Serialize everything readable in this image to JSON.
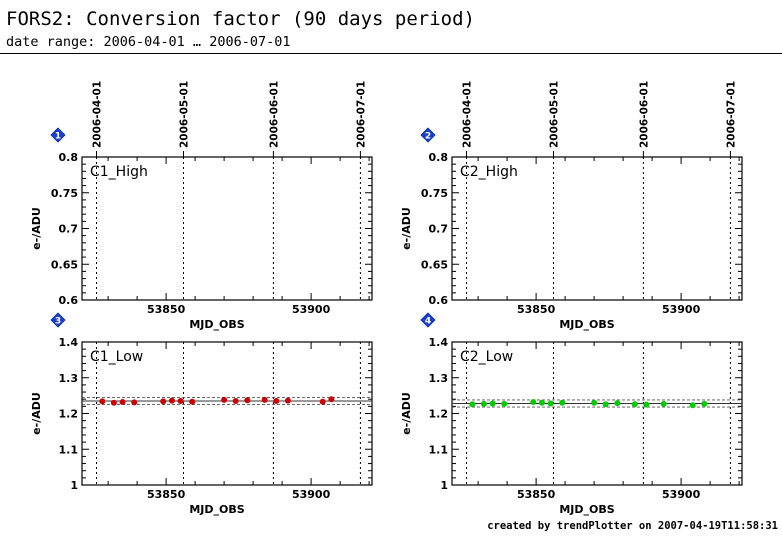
{
  "header": {
    "title": "FORS2: Conversion factor (90 days period)",
    "subtitle": "date range: 2006-04-01 … 2006-07-01"
  },
  "footer": {
    "credit": "created by trendPlotter on 2007-04-19T11:58:31"
  },
  "colors": {
    "badge": "#1a3fd6",
    "c1_points": "#cc0000",
    "c2_points": "#00cc00"
  },
  "chart_data": [
    {
      "type": "scatter",
      "panel_number": "1",
      "panel_label": "C1_High",
      "xlabel": "MJD_OBS",
      "ylabel": "e-/ADU",
      "xlim": [
        53821,
        53921
      ],
      "ylim": [
        0.6,
        0.8
      ],
      "x_ticks": [
        "53850",
        "53900"
      ],
      "y_ticks": [
        "0.6",
        "0.65",
        "0.7",
        "0.75",
        "0.8"
      ],
      "date_markers": [
        {
          "mjd": 53826,
          "label": "2006-04-01"
        },
        {
          "mjd": 53856,
          "label": "2006-05-01"
        },
        {
          "mjd": 53887,
          "label": "2006-06-01"
        },
        {
          "mjd": 53917,
          "label": "2006-07-01"
        }
      ],
      "series": []
    },
    {
      "type": "scatter",
      "panel_number": "2",
      "panel_label": "C2_High",
      "xlabel": "MJD_OBS",
      "ylabel": "e-/ADU",
      "xlim": [
        53821,
        53921
      ],
      "ylim": [
        0.6,
        0.8
      ],
      "x_ticks": [
        "53850",
        "53900"
      ],
      "y_ticks": [
        "0.6",
        "0.65",
        "0.7",
        "0.75",
        "0.8"
      ],
      "date_markers": [
        {
          "mjd": 53826,
          "label": "2006-04-01"
        },
        {
          "mjd": 53856,
          "label": "2006-05-01"
        },
        {
          "mjd": 53887,
          "label": "2006-06-01"
        },
        {
          "mjd": 53917,
          "label": "2006-07-01"
        }
      ],
      "series": []
    },
    {
      "type": "scatter",
      "panel_number": "3",
      "panel_label": "C1_Low",
      "xlabel": "MJD_OBS",
      "ylabel": "e-/ADU",
      "xlim": [
        53821,
        53921
      ],
      "ylim": [
        1.0,
        1.4
      ],
      "x_ticks": [
        "53850",
        "53900"
      ],
      "y_ticks": [
        "1",
        "1.1",
        "1.2",
        "1.3",
        "1.4"
      ],
      "date_markers": [
        {
          "mjd": 53826,
          "label": "2006-04-01"
        },
        {
          "mjd": 53856,
          "label": "2006-05-01"
        },
        {
          "mjd": 53887,
          "label": "2006-06-01"
        },
        {
          "mjd": 53917,
          "label": "2006-07-01"
        }
      ],
      "mean": 1.235,
      "band": [
        1.225,
        1.245
      ],
      "series": [
        {
          "color": "#cc0000",
          "x": [
            53828,
            53832,
            53835,
            53839,
            53849,
            53852,
            53855,
            53859,
            53870,
            53874,
            53878,
            53884,
            53888,
            53892,
            53904,
            53907
          ],
          "y": [
            1.234,
            1.23,
            1.232,
            1.231,
            1.234,
            1.236,
            1.235,
            1.233,
            1.238,
            1.235,
            1.237,
            1.238,
            1.235,
            1.236,
            1.233,
            1.24
          ]
        }
      ]
    },
    {
      "type": "scatter",
      "panel_number": "4",
      "panel_label": "C2_Low",
      "xlabel": "MJD_OBS",
      "ylabel": "e-/ADU",
      "xlim": [
        53821,
        53921
      ],
      "ylim": [
        1.0,
        1.4
      ],
      "x_ticks": [
        "53850",
        "53900"
      ],
      "y_ticks": [
        "1",
        "1.1",
        "1.2",
        "1.3",
        "1.4"
      ],
      "date_markers": [
        {
          "mjd": 53826,
          "label": "2006-04-01"
        },
        {
          "mjd": 53856,
          "label": "2006-05-01"
        },
        {
          "mjd": 53887,
          "label": "2006-06-01"
        },
        {
          "mjd": 53917,
          "label": "2006-07-01"
        }
      ],
      "mean": 1.228,
      "band": [
        1.218,
        1.238
      ],
      "series": [
        {
          "color": "#00cc00",
          "x": [
            53828,
            53832,
            53835,
            53839,
            53849,
            53852,
            53855,
            53859,
            53870,
            53874,
            53878,
            53884,
            53888,
            53894,
            53904,
            53908
          ],
          "y": [
            1.226,
            1.227,
            1.228,
            1.227,
            1.232,
            1.23,
            1.228,
            1.23,
            1.23,
            1.226,
            1.229,
            1.226,
            1.225,
            1.227,
            1.223,
            1.227
          ]
        }
      ]
    }
  ]
}
